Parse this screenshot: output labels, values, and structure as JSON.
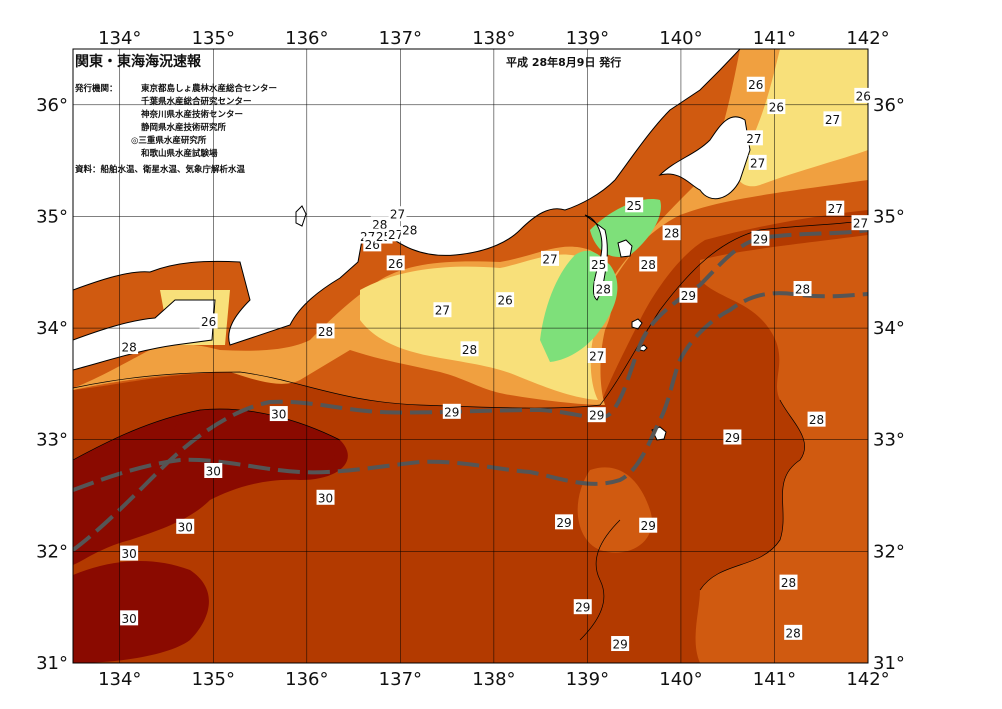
{
  "map": {
    "title": "関東・東海海況速報",
    "date": "平成 28年8月9日 発行",
    "issuer_label": "発行機関：",
    "issuers": [
      "東京都島しょ農林水産総合センター",
      "千葉県水産総合研究センター",
      "神奈川県水産技術センター",
      "静岡県水産技術研究所",
      "◎三重県水産研究所",
      "和歌山県水産試験場"
    ],
    "source": "資料：船舶水温、衛星水温、気象庁解析水温",
    "lon_range": [
      133.5,
      142
    ],
    "lat_range": [
      31,
      36.5
    ],
    "lon_labels": [
      "134°",
      "135°",
      "136°",
      "137°",
      "138°",
      "139°",
      "140°",
      "141°",
      "142°"
    ],
    "lat_labels": [
      "31°",
      "32°",
      "33°",
      "34°",
      "35°",
      "36°"
    ],
    "colors": {
      "t30": "#8a0a00",
      "t29": "#b33a00",
      "t28": "#d05a10",
      "t27": "#f0a040",
      "t26": "#f8e07a",
      "t25": "#7ee07a",
      "land": "#ffffff",
      "kuroshio": "#555555"
    },
    "isotherm_labels": [
      {
        "text": "26",
        "lon": 140.8,
        "lat": 36.18
      },
      {
        "text": "26",
        "lon": 141.02,
        "lat": 35.98
      },
      {
        "text": "26",
        "lon": 141.95,
        "lat": 36.08
      },
      {
        "text": "27",
        "lon": 141.62,
        "lat": 35.87
      },
      {
        "text": "27",
        "lon": 140.78,
        "lat": 35.7
      },
      {
        "text": "27",
        "lon": 140.82,
        "lat": 35.48
      },
      {
        "text": "27",
        "lon": 141.65,
        "lat": 35.07
      },
      {
        "text": "27",
        "lon": 141.92,
        "lat": 34.94
      },
      {
        "text": "25",
        "lon": 139.5,
        "lat": 35.1
      },
      {
        "text": "25",
        "lon": 139.12,
        "lat": 34.57
      },
      {
        "text": "28",
        "lon": 139.9,
        "lat": 34.85
      },
      {
        "text": "28",
        "lon": 139.65,
        "lat": 34.57
      },
      {
        "text": "29",
        "lon": 140.85,
        "lat": 34.8
      },
      {
        "text": "28",
        "lon": 141.3,
        "lat": 34.35
      },
      {
        "text": "29",
        "lon": 140.08,
        "lat": 34.29
      },
      {
        "text": "28",
        "lon": 139.17,
        "lat": 34.35
      },
      {
        "text": "27",
        "lon": 138.6,
        "lat": 34.62
      },
      {
        "text": "26",
        "lon": 138.12,
        "lat": 34.25
      },
      {
        "text": "27",
        "lon": 139.1,
        "lat": 33.75
      },
      {
        "text": "27",
        "lon": 136.97,
        "lat": 35.02
      },
      {
        "text": "28",
        "lon": 136.78,
        "lat": 34.93
      },
      {
        "text": "27",
        "lon": 136.65,
        "lat": 34.82
      },
      {
        "text": "26",
        "lon": 136.7,
        "lat": 34.75
      },
      {
        "text": "25",
        "lon": 136.82,
        "lat": 34.82
      },
      {
        "text": "27",
        "lon": 136.95,
        "lat": 34.84
      },
      {
        "text": "28",
        "lon": 137.1,
        "lat": 34.88
      },
      {
        "text": "26",
        "lon": 136.95,
        "lat": 34.58
      },
      {
        "text": "27",
        "lon": 137.45,
        "lat": 34.16
      },
      {
        "text": "28",
        "lon": 136.2,
        "lat": 33.97
      },
      {
        "text": "28",
        "lon": 137.74,
        "lat": 33.81
      },
      {
        "text": "26",
        "lon": 134.95,
        "lat": 34.06
      },
      {
        "text": "28",
        "lon": 134.1,
        "lat": 33.83
      },
      {
        "text": "30",
        "lon": 135.7,
        "lat": 33.23
      },
      {
        "text": "29",
        "lon": 137.55,
        "lat": 33.25
      },
      {
        "text": "29",
        "lon": 139.1,
        "lat": 33.22
      },
      {
        "text": "29",
        "lon": 140.55,
        "lat": 33.02
      },
      {
        "text": "28",
        "lon": 141.45,
        "lat": 33.18
      },
      {
        "text": "30",
        "lon": 135.0,
        "lat": 32.72
      },
      {
        "text": "30",
        "lon": 136.2,
        "lat": 32.48
      },
      {
        "text": "30",
        "lon": 134.7,
        "lat": 32.22
      },
      {
        "text": "29",
        "lon": 138.75,
        "lat": 32.26
      },
      {
        "text": "29",
        "lon": 139.65,
        "lat": 32.23
      },
      {
        "text": "30",
        "lon": 134.1,
        "lat": 31.98
      },
      {
        "text": "28",
        "lon": 141.15,
        "lat": 31.72
      },
      {
        "text": "29",
        "lon": 138.95,
        "lat": 31.5
      },
      {
        "text": "30",
        "lon": 134.1,
        "lat": 31.4
      },
      {
        "text": "28",
        "lon": 141.2,
        "lat": 31.27
      },
      {
        "text": "29",
        "lon": 139.35,
        "lat": 31.17
      }
    ]
  }
}
